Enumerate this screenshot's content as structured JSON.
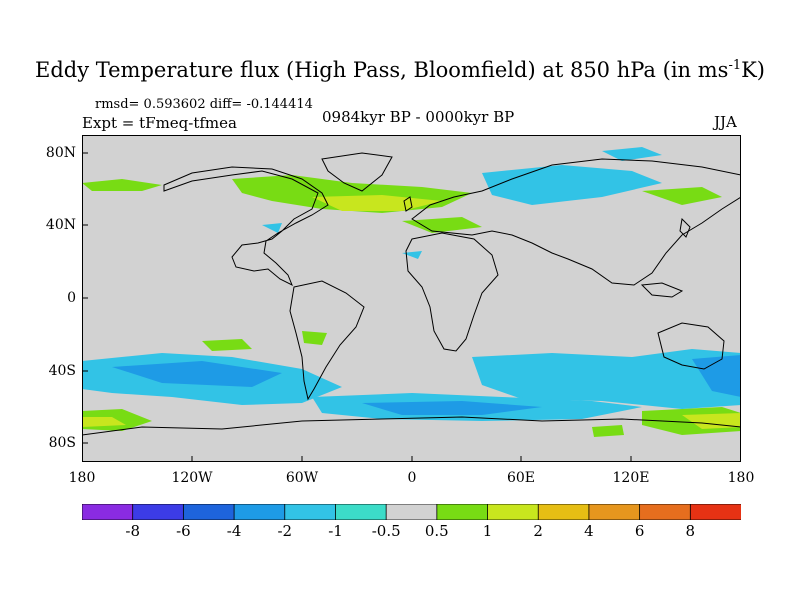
{
  "title": {
    "text": "Eddy Temperature flux (High Pass, Bloomfield) at 850 hPa (in ms",
    "sup": "-1",
    "suffix": "K)"
  },
  "stats": "rmsd= 0.593602 diff= -0.144414",
  "expt": "Expt = tFmeq-tfmea",
  "period": "0984kyr BP - 0000kyr BP",
  "season": "JJA",
  "lat_labels": [
    "80N",
    "40N",
    "0",
    "40S",
    "80S"
  ],
  "lon_labels": [
    "180",
    "120W",
    "60W",
    "0",
    "60E",
    "120E",
    "180"
  ],
  "colorbar": {
    "labels": [
      "-8",
      "-6",
      "-4",
      "-2",
      "-1",
      "-0.5",
      "0.5",
      "1",
      "2",
      "4",
      "6",
      "8"
    ],
    "colors": [
      "#8a2be2",
      "#3c3ce6",
      "#1e64dc",
      "#1e9be6",
      "#32c3e6",
      "#3cdcc8",
      "#d2d2d2",
      "#78dc14",
      "#c8e61e",
      "#e6be14",
      "#e6961e",
      "#e66e1e",
      "#e63214"
    ]
  },
  "map_colors": {
    "ocean_land": "#d2d2d2",
    "coast": "#000000"
  }
}
